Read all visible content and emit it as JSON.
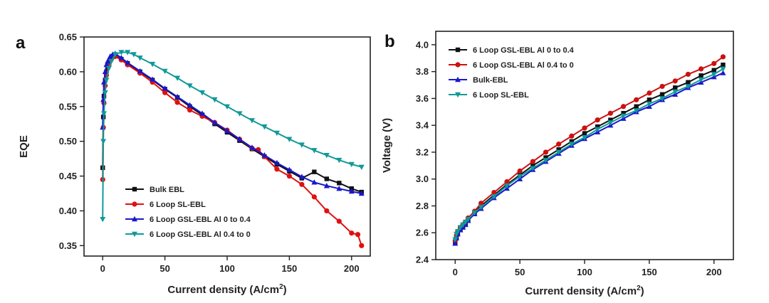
{
  "chart_data": [
    {
      "panel": "a",
      "type": "line",
      "xlabel": "Current density (A/cm",
      "xlabel_sup": "2",
      "xlabel_end": ")",
      "ylabel": "EQE",
      "xlim": [
        -15,
        215
      ],
      "ylim": [
        0.335,
        0.65
      ],
      "xticks": [
        0,
        50,
        100,
        150,
        200
      ],
      "yticks": [
        0.35,
        0.4,
        0.45,
        0.5,
        0.55,
        0.6,
        0.65
      ],
      "ytick_decimals": 2,
      "legend_position": "bottom-left",
      "series": [
        {
          "name": "Bulk EBL",
          "color": "#111111",
          "marker": "square",
          "x": [
            0,
            0.5,
            1,
            2,
            3,
            4,
            5,
            6,
            8,
            10,
            15,
            20,
            30,
            40,
            50,
            60,
            70,
            80,
            90,
            100,
            110,
            120,
            130,
            140,
            150,
            160,
            170,
            180,
            190,
            200,
            208
          ],
          "y": [
            0.462,
            0.535,
            0.565,
            0.588,
            0.6,
            0.608,
            0.613,
            0.617,
            0.622,
            0.623,
            0.618,
            0.612,
            0.6,
            0.588,
            0.575,
            0.563,
            0.55,
            0.538,
            0.525,
            0.513,
            0.501,
            0.489,
            0.478,
            0.467,
            0.457,
            0.447,
            0.456,
            0.446,
            0.44,
            0.432,
            0.427
          ]
        },
        {
          "name": "6 Loop SL-EBL",
          "color": "#e01010",
          "marker": "circle",
          "x": [
            0,
            0.5,
            1,
            2,
            3,
            5,
            7,
            10,
            15,
            20,
            30,
            40,
            50,
            60,
            70,
            80,
            90,
            100,
            110,
            120,
            125,
            130,
            140,
            150,
            160,
            170,
            180,
            190,
            200,
            205,
            208
          ],
          "y": [
            0.445,
            0.52,
            0.555,
            0.58,
            0.595,
            0.61,
            0.618,
            0.622,
            0.617,
            0.61,
            0.598,
            0.585,
            0.57,
            0.556,
            0.545,
            0.536,
            0.527,
            0.516,
            0.503,
            0.49,
            0.488,
            0.478,
            0.46,
            0.45,
            0.438,
            0.42,
            0.4,
            0.385,
            0.368,
            0.366,
            0.35
          ]
        },
        {
          "name": "6 Loop GSL-EBL Al 0 to 0.4",
          "color": "#1818cc",
          "marker": "triangle-up",
          "x": [
            0,
            0.5,
            1,
            2,
            3,
            4,
            5,
            6,
            8,
            10,
            15,
            20,
            30,
            40,
            50,
            60,
            70,
            80,
            90,
            100,
            110,
            120,
            130,
            140,
            150,
            160,
            170,
            180,
            190,
            200,
            208
          ],
          "y": [
            0.52,
            0.56,
            0.585,
            0.6,
            0.61,
            0.615,
            0.618,
            0.622,
            0.625,
            0.626,
            0.62,
            0.613,
            0.601,
            0.589,
            0.576,
            0.564,
            0.552,
            0.54,
            0.527,
            0.515,
            0.503,
            0.491,
            0.48,
            0.469,
            0.459,
            0.449,
            0.441,
            0.436,
            0.432,
            0.428,
            0.425
          ]
        },
        {
          "name": "6 Loop GSL-EBL Al 0.4 to 0",
          "color": "#119999",
          "marker": "triangle-down",
          "x": [
            0,
            0.5,
            1,
            2,
            3,
            5,
            7,
            10,
            15,
            20,
            25,
            30,
            40,
            50,
            60,
            70,
            80,
            90,
            100,
            110,
            120,
            130,
            140,
            150,
            160,
            170,
            180,
            190,
            200,
            208
          ],
          "y": [
            0.388,
            0.5,
            0.54,
            0.57,
            0.588,
            0.605,
            0.615,
            0.625,
            0.628,
            0.628,
            0.625,
            0.62,
            0.611,
            0.601,
            0.591,
            0.58,
            0.57,
            0.56,
            0.55,
            0.54,
            0.53,
            0.521,
            0.512,
            0.503,
            0.495,
            0.487,
            0.48,
            0.473,
            0.467,
            0.463
          ]
        }
      ]
    },
    {
      "panel": "b",
      "type": "line",
      "xlabel": "Current density (A/cm",
      "xlabel_sup": "2",
      "xlabel_end": ")",
      "ylabel": "Voltage (V)",
      "xlim": [
        -15,
        215
      ],
      "ylim": [
        2.4,
        4.1
      ],
      "xticks": [
        0,
        50,
        100,
        150,
        200
      ],
      "yticks": [
        2.4,
        2.6,
        2.8,
        3.0,
        3.2,
        3.4,
        3.6,
        3.8,
        4.0
      ],
      "ytick_decimals": 1,
      "legend_position": "top-left",
      "series": [
        {
          "name": "6 Loop GSL-EBL Al 0 to 0.4",
          "color": "#111111",
          "marker": "square",
          "x": [
            0,
            1,
            2,
            4,
            6,
            8,
            10,
            15,
            20,
            30,
            40,
            50,
            60,
            70,
            80,
            90,
            100,
            110,
            120,
            130,
            140,
            150,
            160,
            170,
            180,
            190,
            200,
            207
          ],
          "y": [
            2.53,
            2.57,
            2.6,
            2.63,
            2.65,
            2.67,
            2.7,
            2.75,
            2.8,
            2.88,
            2.96,
            3.03,
            3.1,
            3.16,
            3.22,
            3.28,
            3.34,
            3.39,
            3.44,
            3.49,
            3.54,
            3.59,
            3.63,
            3.68,
            3.72,
            3.77,
            3.81,
            3.85
          ]
        },
        {
          "name": "6 Loop GSL-EBL Al 0.4 to 0",
          "color": "#cc1111",
          "marker": "circle",
          "x": [
            0,
            1,
            2,
            4,
            6,
            8,
            10,
            15,
            20,
            30,
            40,
            50,
            60,
            70,
            80,
            90,
            100,
            110,
            120,
            130,
            140,
            150,
            160,
            170,
            180,
            190,
            200,
            207
          ],
          "y": [
            2.54,
            2.58,
            2.61,
            2.64,
            2.66,
            2.68,
            2.71,
            2.76,
            2.82,
            2.9,
            2.98,
            3.06,
            3.13,
            3.2,
            3.26,
            3.32,
            3.38,
            3.44,
            3.49,
            3.54,
            3.59,
            3.64,
            3.69,
            3.73,
            3.78,
            3.82,
            3.86,
            3.91
          ]
        },
        {
          "name": "Bulk-EBL",
          "color": "#1818cc",
          "marker": "triangle-up",
          "x": [
            0,
            1,
            2,
            4,
            6,
            8,
            10,
            15,
            20,
            30,
            40,
            50,
            60,
            70,
            80,
            90,
            100,
            110,
            120,
            130,
            140,
            150,
            160,
            170,
            180,
            190,
            200,
            207
          ],
          "y": [
            2.52,
            2.56,
            2.59,
            2.62,
            2.64,
            2.66,
            2.69,
            2.74,
            2.78,
            2.86,
            2.93,
            3.0,
            3.07,
            3.13,
            3.19,
            3.25,
            3.3,
            3.35,
            3.4,
            3.45,
            3.5,
            3.54,
            3.59,
            3.63,
            3.68,
            3.72,
            3.76,
            3.79
          ]
        },
        {
          "name": "6 Loop SL-EBL",
          "color": "#119999",
          "marker": "triangle-down",
          "x": [
            0,
            1,
            2,
            4,
            6,
            8,
            10,
            15,
            20,
            30,
            40,
            50,
            60,
            70,
            80,
            90,
            100,
            110,
            120,
            130,
            140,
            150,
            160,
            170,
            180,
            190,
            200,
            207
          ],
          "y": [
            2.55,
            2.59,
            2.61,
            2.64,
            2.66,
            2.68,
            2.7,
            2.75,
            2.79,
            2.87,
            2.95,
            3.02,
            3.08,
            3.14,
            3.2,
            3.26,
            3.31,
            3.37,
            3.42,
            3.47,
            3.51,
            3.56,
            3.6,
            3.65,
            3.69,
            3.74,
            3.78,
            3.82
          ]
        }
      ]
    }
  ]
}
